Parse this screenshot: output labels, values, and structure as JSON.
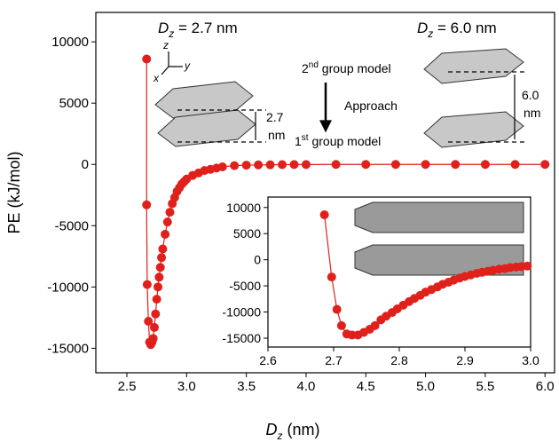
{
  "chart_data": [
    {
      "type": "scatter",
      "x_label": {
        "main": "D",
        "sub": "z",
        "rest": " (nm)"
      },
      "y_label": "PE (kJ/mol)",
      "xlim": [
        2.24,
        6.08
      ],
      "ylim": [
        -17000,
        12400
      ],
      "xticks": [
        2.5,
        {
          "value": 3.0,
          "label": "3.0"
        },
        3.5,
        {
          "value": 4.0,
          "label": "4.0"
        },
        4.5,
        {
          "value": 5.0,
          "label": "5.0"
        },
        5.5,
        {
          "value": 6.0,
          "label": "6.0"
        }
      ],
      "yticks": [
        -15000,
        -10000,
        -5000,
        0,
        5000,
        10000
      ],
      "series": [
        {
          "color": "#e0201b",
          "x": [
            2.665,
            2.665,
            2.67,
            2.68,
            2.69,
            2.7,
            2.71,
            2.72,
            2.73,
            2.74,
            2.75,
            2.76,
            2.77,
            2.78,
            2.79,
            2.8,
            2.82,
            2.84,
            2.86,
            2.88,
            2.9,
            2.92,
            2.94,
            2.96,
            2.98,
            3.0,
            3.05,
            3.1,
            3.15,
            3.2,
            3.25,
            3.3,
            3.4,
            3.5,
            3.6,
            3.7,
            3.8,
            3.9,
            4.0,
            4.25,
            4.5,
            4.75,
            5.0,
            5.25,
            5.5,
            5.75,
            6.0
          ],
          "values": [
            8600,
            -3300,
            -9800,
            -12800,
            -14500,
            -14700,
            -14500,
            -14200,
            -13300,
            -12200,
            -11000,
            -10000,
            -9200,
            -8400,
            -7600,
            -6900,
            -5700,
            -4700,
            -3900,
            -3200,
            -2700,
            -2200,
            -1900,
            -1600,
            -1400,
            -1200,
            -900,
            -700,
            -500,
            -400,
            -300,
            -200,
            -100,
            -60,
            -40,
            -30,
            -20,
            -10,
            -10,
            0,
            0,
            0,
            0,
            0,
            0,
            0,
            0
          ]
        }
      ],
      "annotations": {
        "left_dz": {
          "main": "D",
          "sub": "z",
          "rest": " = 2.7 nm"
        },
        "right_dz": {
          "main": "D",
          "sub": "z",
          "rest": " = 6.0 nm"
        },
        "second_group": {
          "pre": "2",
          "sup": "nd",
          "rest": " group model"
        },
        "approach": "Approach",
        "first_group": {
          "pre": "1",
          "sup": "st",
          "rest": " group model"
        },
        "gap_left": [
          "2.7",
          "nm"
        ],
        "gap_right": [
          "6.0",
          "nm"
        ],
        "axis_z": "z",
        "axis_y": "y",
        "axis_x": "x"
      }
    },
    {
      "type": "scatter",
      "xlim": [
        2.6,
        3.0
      ],
      "ylim": [
        -16700,
        12000
      ],
      "xticks": [
        2.6,
        2.7,
        2.8,
        2.9,
        {
          "value": 3.0,
          "label": "3.0"
        }
      ],
      "yticks": [
        -15000,
        -10000,
        -5000,
        0,
        5000,
        10000
      ],
      "series": [
        {
          "color": "#e0201b",
          "x": [
            2.686,
            2.697,
            2.705,
            2.712,
            2.72,
            2.728,
            2.737,
            2.746,
            2.755,
            2.763,
            2.772,
            2.78,
            2.789,
            2.797,
            2.806,
            2.815,
            2.823,
            2.832,
            2.84,
            2.849,
            2.858,
            2.866,
            2.875,
            2.883,
            2.892,
            2.9,
            2.909,
            2.918,
            2.926,
            2.935,
            2.943,
            2.952,
            2.961,
            2.969,
            2.978,
            2.986,
            2.995
          ],
          "values": [
            8600,
            -3300,
            -9500,
            -12600,
            -14200,
            -14400,
            -14400,
            -13900,
            -13300,
            -12600,
            -11500,
            -10800,
            -10100,
            -9400,
            -8700,
            -8000,
            -7400,
            -6800,
            -6200,
            -5700,
            -5200,
            -4700,
            -4300,
            -3900,
            -3500,
            -3200,
            -2900,
            -2600,
            -2400,
            -2200,
            -2000,
            -1800,
            -1700,
            -1500,
            -1400,
            -1300,
            -1200
          ]
        }
      ]
    }
  ]
}
